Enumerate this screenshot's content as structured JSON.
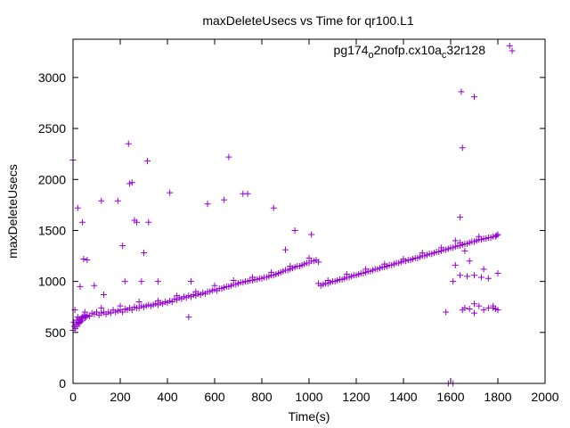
{
  "chart_data": {
    "type": "scatter",
    "title": "maxDeleteUsecs vs Time for qr100.L1",
    "xlabel": "Time(s)",
    "ylabel": "maxDeleteUsecs",
    "xlim": [
      0,
      2000
    ],
    "ylim": [
      0,
      3375
    ],
    "x_ticks": [
      "0",
      "200",
      "400",
      "600",
      "800",
      "1000",
      "1200",
      "1400",
      "1600",
      "1800",
      "2000"
    ],
    "y_ticks": [
      "0",
      "500",
      "1000",
      "1500",
      "2000",
      "2500",
      "3000"
    ],
    "grid": false,
    "legend_position": "top-right",
    "series": [
      {
        "legend_parts": [
          "pg174",
          "o",
          "2nofp.cx10a",
          "c",
          "32r128"
        ],
        "color": "#9400d3",
        "marker": "plus",
        "points": [
          [
            0,
            520
          ],
          [
            3,
            600
          ],
          [
            5,
            560
          ],
          [
            8,
            720
          ],
          [
            10,
            540
          ],
          [
            12,
            580
          ],
          [
            15,
            620
          ],
          [
            18,
            560
          ],
          [
            20,
            650
          ],
          [
            22,
            600
          ],
          [
            25,
            590
          ],
          [
            28,
            630
          ],
          [
            30,
            600
          ],
          [
            33,
            610
          ],
          [
            35,
            640
          ],
          [
            38,
            620
          ],
          [
            40,
            650
          ],
          [
            45,
            660
          ],
          [
            50,
            640
          ],
          [
            55,
            650
          ],
          [
            60,
            670
          ],
          [
            70,
            660
          ],
          [
            80,
            690
          ],
          [
            90,
            680
          ],
          [
            100,
            700
          ],
          [
            110,
            670
          ],
          [
            120,
            690
          ],
          [
            130,
            700
          ],
          [
            140,
            680
          ],
          [
            150,
            700
          ],
          [
            160,
            690
          ],
          [
            170,
            720
          ],
          [
            180,
            700
          ],
          [
            190,
            710
          ],
          [
            200,
            720
          ],
          [
            210,
            700
          ],
          [
            220,
            730
          ],
          [
            230,
            720
          ],
          [
            240,
            740
          ],
          [
            250,
            720
          ],
          [
            260,
            750
          ],
          [
            270,
            740
          ],
          [
            280,
            740
          ],
          [
            290,
            760
          ],
          [
            300,
            750
          ],
          [
            310,
            760
          ],
          [
            320,
            770
          ],
          [
            330,
            760
          ],
          [
            340,
            770
          ],
          [
            350,
            780
          ],
          [
            360,
            770
          ],
          [
            370,
            790
          ],
          [
            380,
            780
          ],
          [
            390,
            800
          ],
          [
            400,
            790
          ],
          [
            410,
            810
          ],
          [
            420,
            800
          ],
          [
            430,
            830
          ],
          [
            440,
            820
          ],
          [
            450,
            840
          ],
          [
            460,
            830
          ],
          [
            470,
            850
          ],
          [
            480,
            840
          ],
          [
            490,
            860
          ],
          [
            500,
            850
          ],
          [
            510,
            870
          ],
          [
            520,
            860
          ],
          [
            530,
            880
          ],
          [
            540,
            870
          ],
          [
            550,
            890
          ],
          [
            560,
            880
          ],
          [
            570,
            900
          ],
          [
            580,
            900
          ],
          [
            590,
            910
          ],
          [
            600,
            920
          ],
          [
            610,
            910
          ],
          [
            620,
            930
          ],
          [
            630,
            930
          ],
          [
            640,
            940
          ],
          [
            650,
            950
          ],
          [
            660,
            950
          ],
          [
            670,
            960
          ],
          [
            680,
            970
          ],
          [
            690,
            970
          ],
          [
            700,
            980
          ],
          [
            710,
            990
          ],
          [
            720,
            990
          ],
          [
            730,
            1000
          ],
          [
            740,
            1000
          ],
          [
            750,
            1010
          ],
          [
            760,
            1010
          ],
          [
            770,
            1020
          ],
          [
            780,
            1020
          ],
          [
            790,
            1030
          ],
          [
            800,
            1030
          ],
          [
            810,
            1040
          ],
          [
            820,
            1040
          ],
          [
            830,
            1050
          ],
          [
            840,
            1060
          ],
          [
            850,
            1060
          ],
          [
            860,
            1070
          ],
          [
            870,
            1080
          ],
          [
            880,
            1090
          ],
          [
            890,
            1100
          ],
          [
            900,
            1110
          ],
          [
            910,
            1110
          ],
          [
            920,
            1120
          ],
          [
            930,
            1130
          ],
          [
            940,
            1140
          ],
          [
            950,
            1150
          ],
          [
            960,
            1150
          ],
          [
            970,
            1160
          ],
          [
            980,
            1170
          ],
          [
            990,
            1180
          ],
          [
            1000,
            1180
          ],
          [
            1010,
            1200
          ],
          [
            1020,
            1200
          ],
          [
            1030,
            1210
          ],
          [
            1040,
            1190
          ],
          [
            1040,
            980
          ],
          [
            1050,
            960
          ],
          [
            1060,
            970
          ],
          [
            1070,
            980
          ],
          [
            1080,
            980
          ],
          [
            1090,
            990
          ],
          [
            1100,
            1000
          ],
          [
            1110,
            1000
          ],
          [
            1120,
            1010
          ],
          [
            1130,
            1020
          ],
          [
            1140,
            1020
          ],
          [
            1150,
            1030
          ],
          [
            1160,
            1040
          ],
          [
            1170,
            1040
          ],
          [
            1180,
            1050
          ],
          [
            1190,
            1060
          ],
          [
            1200,
            1060
          ],
          [
            1210,
            1070
          ],
          [
            1220,
            1080
          ],
          [
            1230,
            1080
          ],
          [
            1240,
            1090
          ],
          [
            1250,
            1100
          ],
          [
            1260,
            1100
          ],
          [
            1270,
            1110
          ],
          [
            1280,
            1120
          ],
          [
            1290,
            1120
          ],
          [
            1300,
            1130
          ],
          [
            1310,
            1140
          ],
          [
            1320,
            1140
          ],
          [
            1330,
            1150
          ],
          [
            1340,
            1160
          ],
          [
            1350,
            1160
          ],
          [
            1360,
            1170
          ],
          [
            1370,
            1180
          ],
          [
            1380,
            1180
          ],
          [
            1390,
            1190
          ],
          [
            1400,
            1200
          ],
          [
            1410,
            1200
          ],
          [
            1420,
            1210
          ],
          [
            1430,
            1210
          ],
          [
            1440,
            1220
          ],
          [
            1450,
            1230
          ],
          [
            1460,
            1230
          ],
          [
            1470,
            1240
          ],
          [
            1480,
            1250
          ],
          [
            1490,
            1250
          ],
          [
            1500,
            1260
          ],
          [
            1510,
            1270
          ],
          [
            1520,
            1270
          ],
          [
            1530,
            1280
          ],
          [
            1540,
            1290
          ],
          [
            1550,
            1290
          ],
          [
            1560,
            1300
          ],
          [
            1570,
            1310
          ],
          [
            1580,
            1310
          ],
          [
            1590,
            1320
          ],
          [
            1600,
            1330
          ],
          [
            1610,
            1330
          ],
          [
            1620,
            1340
          ],
          [
            1630,
            1350
          ],
          [
            1640,
            1350
          ],
          [
            1650,
            1360
          ],
          [
            1660,
            1370
          ],
          [
            1670,
            1370
          ],
          [
            1680,
            1380
          ],
          [
            1690,
            1390
          ],
          [
            1700,
            1390
          ],
          [
            1710,
            1400
          ],
          [
            1720,
            1410
          ],
          [
            1730,
            1410
          ],
          [
            1740,
            1420
          ],
          [
            1750,
            1420
          ],
          [
            1760,
            1430
          ],
          [
            1770,
            1430
          ],
          [
            1780,
            1440
          ],
          [
            1790,
            1440
          ],
          [
            1795,
            1450
          ],
          [
            1800,
            1460
          ],
          [
            50,
            700
          ],
          [
            120,
            740
          ],
          [
            200,
            760
          ],
          [
            280,
            800
          ],
          [
            360,
            810
          ],
          [
            440,
            860
          ],
          [
            520,
            900
          ],
          [
            600,
            960
          ],
          [
            680,
            1010
          ],
          [
            760,
            1040
          ],
          [
            840,
            1090
          ],
          [
            920,
            1150
          ],
          [
            1000,
            1230
          ],
          [
            1080,
            1010
          ],
          [
            1160,
            1070
          ],
          [
            1240,
            1120
          ],
          [
            1320,
            1170
          ],
          [
            1400,
            1220
          ],
          [
            1480,
            1280
          ],
          [
            1560,
            1330
          ],
          [
            1640,
            1380
          ],
          [
            1720,
            1440
          ],
          [
            0,
            2190
          ],
          [
            20,
            1720
          ],
          [
            40,
            1580
          ],
          [
            30,
            950
          ],
          [
            45,
            1220
          ],
          [
            60,
            1210
          ],
          [
            90,
            960
          ],
          [
            120,
            1790
          ],
          [
            130,
            870
          ],
          [
            190,
            1790
          ],
          [
            210,
            1350
          ],
          [
            220,
            1000
          ],
          [
            235,
            2350
          ],
          [
            240,
            1960
          ],
          [
            250,
            1970
          ],
          [
            260,
            1600
          ],
          [
            270,
            1580
          ],
          [
            290,
            1000
          ],
          [
            300,
            1280
          ],
          [
            315,
            2180
          ],
          [
            320,
            1580
          ],
          [
            360,
            1000
          ],
          [
            410,
            1870
          ],
          [
            490,
            650
          ],
          [
            500,
            1000
          ],
          [
            570,
            1760
          ],
          [
            640,
            1800
          ],
          [
            660,
            2220
          ],
          [
            720,
            1860
          ],
          [
            740,
            1860
          ],
          [
            850,
            1720
          ],
          [
            900,
            1310
          ],
          [
            940,
            1500
          ],
          [
            1010,
            1460
          ],
          [
            1580,
            700
          ],
          [
            1590,
            0
          ],
          [
            1610,
            0
          ],
          [
            1620,
            1400
          ],
          [
            1640,
            1630
          ],
          [
            1645,
            2860
          ],
          [
            1650,
            2310
          ],
          [
            1660,
            1300
          ],
          [
            1700,
            2810
          ],
          [
            1650,
            720
          ],
          [
            1660,
            740
          ],
          [
            1680,
            730
          ],
          [
            1700,
            780
          ],
          [
            1720,
            760
          ],
          [
            1740,
            720
          ],
          [
            1780,
            760
          ],
          [
            1790,
            730
          ],
          [
            1610,
            1000
          ],
          [
            1640,
            1060
          ],
          [
            1670,
            1050
          ],
          [
            1700,
            1060
          ],
          [
            1730,
            1040
          ],
          [
            1760,
            1030
          ],
          [
            1800,
            1080
          ],
          [
            1850,
            3310
          ],
          [
            1700,
            690
          ],
          [
            1760,
            740
          ],
          [
            1780,
            740
          ],
          [
            1800,
            720
          ],
          [
            1620,
            1160
          ],
          [
            1680,
            1200
          ],
          [
            1740,
            1120
          ]
        ]
      }
    ]
  }
}
